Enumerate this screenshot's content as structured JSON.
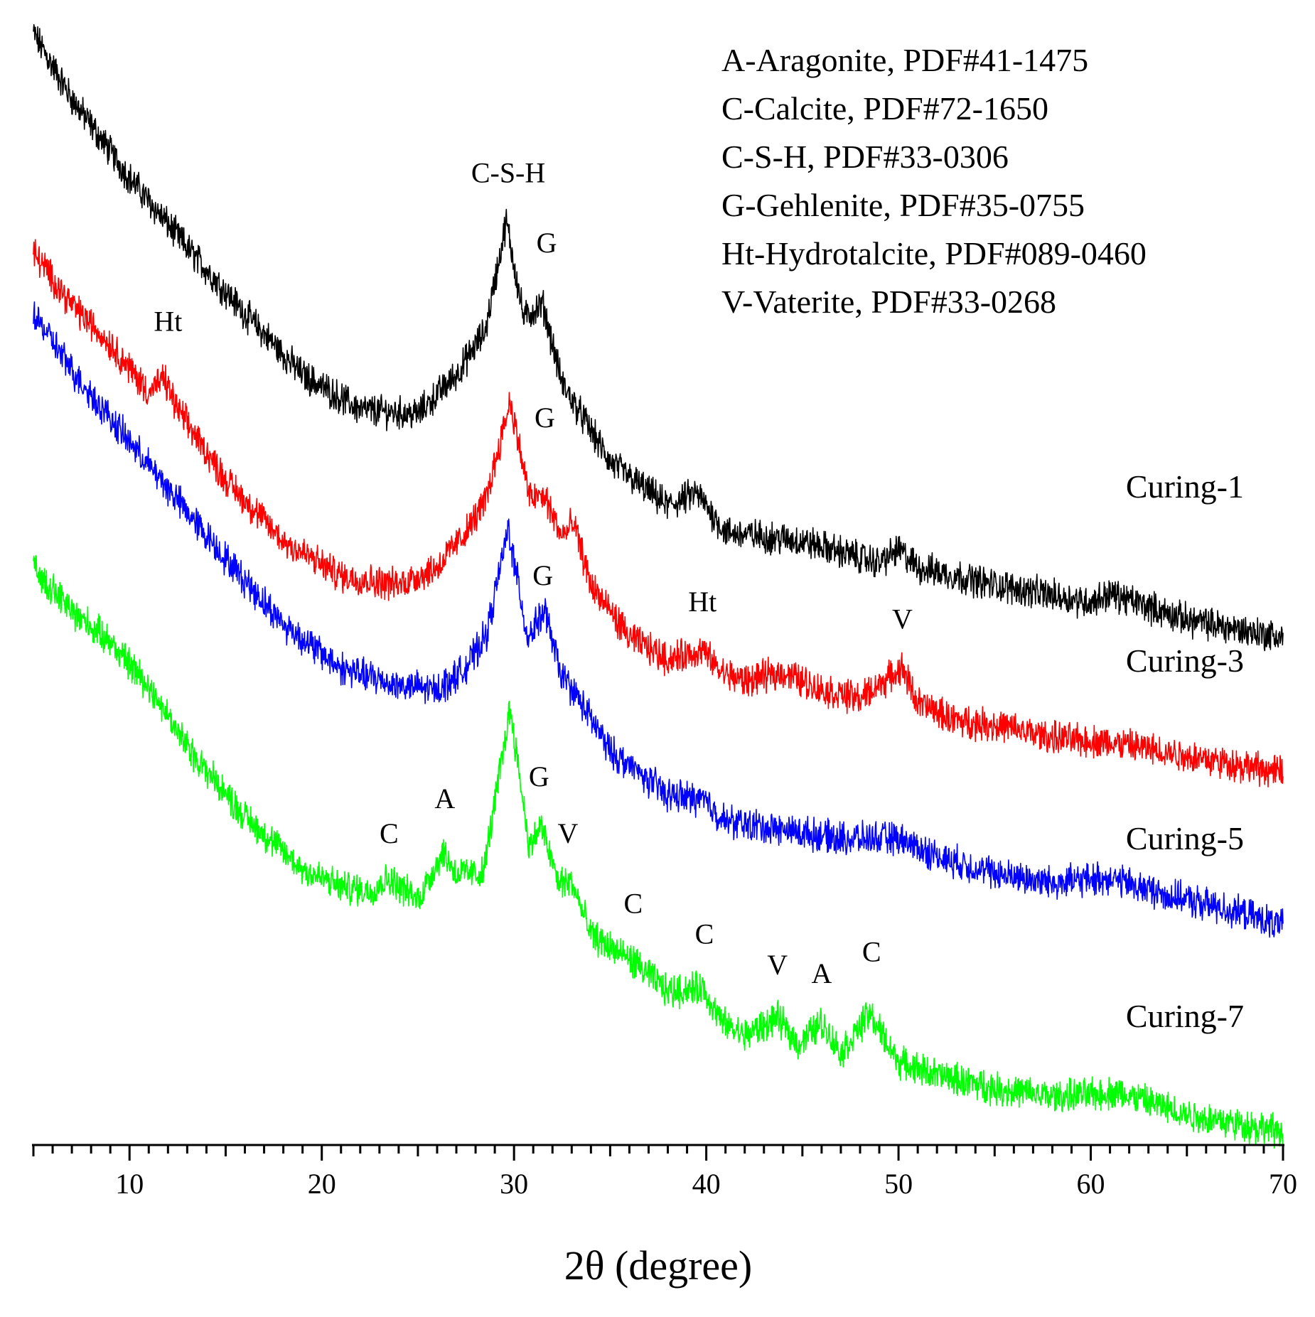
{
  "chart_data": {
    "type": "line",
    "title": "",
    "xlabel": "2θ (degree)",
    "ylabel": "",
    "xlim": [
      5,
      70
    ],
    "ylim": [
      0,
      1300
    ],
    "x_ticks": [
      10,
      20,
      30,
      40,
      50,
      60,
      70
    ],
    "x_tick_labels": [
      "10",
      "20",
      "30",
      "40",
      "50",
      "60",
      "70"
    ],
    "y_axis_visible": false,
    "grid": false,
    "legend_position": "top-right",
    "legend": [
      "A-Aragonite, PDF#41-1475",
      "C-Calcite, PDF#72-1650",
      "C-S-H, PDF#33-0306",
      "G-Gehlenite, PDF#35-0755",
      "Ht-Hydrotalcite, PDF#089-0460",
      "V-Vaterite, PDF#33-0268"
    ],
    "series": [
      {
        "name": "Curing-1",
        "color": "#000000",
        "x": [
          5,
          7,
          10,
          13,
          16,
          19,
          22,
          25,
          27,
          28.5,
          29.6,
          30.5,
          31.5,
          32.5,
          35,
          38,
          39.5,
          41,
          45,
          49,
          50,
          51,
          55,
          60,
          61,
          65,
          70
        ],
        "y": [
          1270,
          1195,
          1105,
          1025,
          950,
          880,
          840,
          835,
          880,
          930,
          1055,
          945,
          960,
          870,
          780,
          730,
          745,
          700,
          690,
          665,
          680,
          660,
          640,
          620,
          630,
          600,
          580
        ]
      },
      {
        "name": "Curing-3",
        "color": "#ff0000",
        "x": [
          5,
          7,
          9,
          11,
          11.8,
          12.5,
          15,
          18,
          21,
          24,
          26,
          27.5,
          28.5,
          29.8,
          30.8,
          31.6,
          32.5,
          33.1,
          34,
          36,
          38,
          39.8,
          40.8,
          42,
          44,
          46,
          48,
          50.2,
          51,
          53,
          55,
          58,
          61,
          65,
          70
        ],
        "y": [
          1020,
          960,
          915,
          860,
          875,
          840,
          760,
          690,
          650,
          640,
          660,
          700,
          735,
          850,
          740,
          740,
          695,
          710,
          640,
          580,
          555,
          565,
          540,
          530,
          540,
          520,
          510,
          545,
          505,
          485,
          480,
          465,
          460,
          445,
          425
        ]
      },
      {
        "name": "Curing-5",
        "color": "#0000ff",
        "x": [
          5,
          7,
          9,
          12,
          15,
          18,
          21,
          24,
          26,
          27.5,
          28.6,
          29.7,
          30.7,
          31.6,
          32.4,
          33.5,
          35,
          38,
          39.8,
          41,
          44,
          47,
          50,
          52,
          55,
          58,
          61,
          64,
          67,
          70
        ],
        "y": [
          950,
          885,
          830,
          750,
          670,
          595,
          545,
          525,
          520,
          545,
          585,
          705,
          580,
          610,
          540,
          505,
          450,
          400,
          395,
          370,
          360,
          350,
          350,
          330,
          310,
          300,
          305,
          285,
          270,
          250
        ]
      },
      {
        "name": "Curing-7",
        "color": "#00ff00",
        "x": [
          5,
          7,
          9,
          11,
          13,
          16,
          19,
          21,
          22.5,
          23.5,
          25,
          26.3,
          27,
          28.4,
          29.8,
          30.8,
          31.4,
          32.3,
          33,
          34,
          36.2,
          38,
          39.8,
          40.8,
          42,
          43.7,
          44.8,
          46,
          47,
          48.5,
          50,
          52,
          55,
          58,
          61.5,
          65,
          70
        ],
        "y": [
          660,
          610,
          575,
          525,
          455,
          375,
          315,
          295,
          290,
          305,
          280,
          335,
          310,
          310,
          500,
          340,
          365,
          300,
          300,
          240,
          210,
          175,
          180,
          140,
          125,
          145,
          115,
          140,
          105,
          150,
          95,
          80,
          65,
          55,
          60,
          35,
          15
        ]
      }
    ],
    "series_labels": [
      "Curing-1",
      "Curing-3",
      "Curing-5",
      "Curing-7"
    ],
    "annotations": [
      {
        "text": "C-S-H",
        "x": 29.7,
        "y": 1100
      },
      {
        "text": "G",
        "x": 31.7,
        "y": 1020
      },
      {
        "text": "Ht",
        "x": 12.0,
        "y": 930
      },
      {
        "text": "G",
        "x": 31.6,
        "y": 820
      },
      {
        "text": "Ht",
        "x": 39.8,
        "y": 610
      },
      {
        "text": "V",
        "x": 50.2,
        "y": 590
      },
      {
        "text": "G",
        "x": 31.5,
        "y": 640
      },
      {
        "text": "G",
        "x": 31.3,
        "y": 410
      },
      {
        "text": "A",
        "x": 26.4,
        "y": 385
      },
      {
        "text": "C",
        "x": 23.5,
        "y": 345
      },
      {
        "text": "V",
        "x": 32.8,
        "y": 345
      },
      {
        "text": "C",
        "x": 36.2,
        "y": 265
      },
      {
        "text": "C",
        "x": 39.9,
        "y": 230
      },
      {
        "text": "V",
        "x": 43.7,
        "y": 195
      },
      {
        "text": "A",
        "x": 46.0,
        "y": 185
      },
      {
        "text": "C",
        "x": 48.6,
        "y": 210
      }
    ]
  }
}
